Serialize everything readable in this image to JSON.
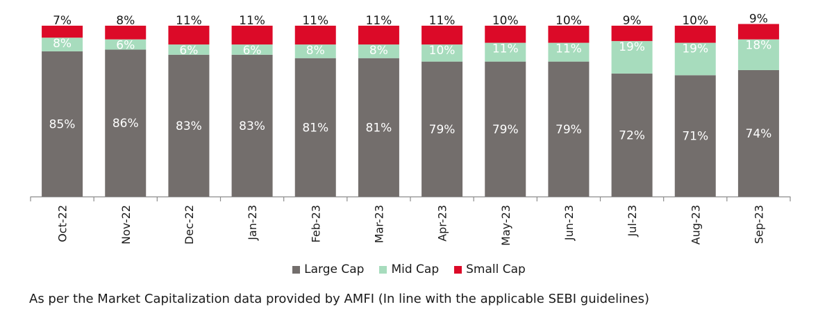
{
  "chart_data": {
    "type": "bar",
    "stacked": true,
    "percent_stacked": true,
    "categories": [
      "Oct-22",
      "Nov-22",
      "Dec-22",
      "Jan-23",
      "Feb-23",
      "Mar-23",
      "Apr-23",
      "May-23",
      "Jun-23",
      "Jul-23",
      "Aug-23",
      "Sep-23"
    ],
    "series": [
      {
        "name": "Large Cap",
        "color": "#736e6c",
        "values": [
          85,
          86,
          83,
          83,
          81,
          81,
          79,
          79,
          79,
          72,
          71,
          74
        ]
      },
      {
        "name": "Mid Cap",
        "color": "#a7dcbd",
        "values": [
          8,
          6,
          6,
          6,
          8,
          8,
          10,
          11,
          11,
          19,
          19,
          18
        ]
      },
      {
        "name": "Small Cap",
        "color": "#dc0a28",
        "values": [
          7,
          8,
          11,
          11,
          11,
          11,
          11,
          10,
          10,
          9,
          10,
          9
        ]
      }
    ],
    "value_suffix": "%",
    "ylim": [
      0,
      100
    ],
    "grid": false,
    "legend_position": "bottom"
  },
  "footnote": "As per the Market Capitalization data provided by AMFI (In line with the applicable SEBI guidelines)"
}
